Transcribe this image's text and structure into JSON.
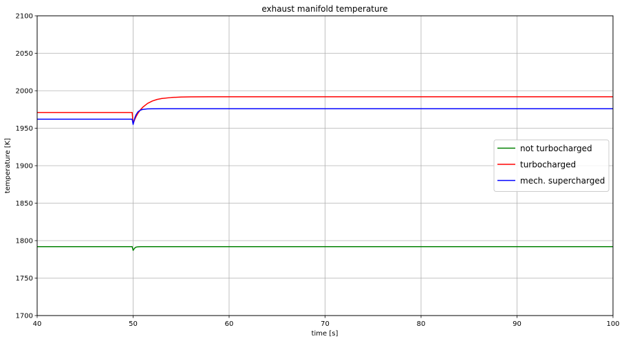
{
  "chart_data": {
    "type": "line",
    "title": "exhaust manifold temperature",
    "xlabel": "time [s]",
    "ylabel": "temperature [K]",
    "xlim": [
      40,
      100
    ],
    "ylim": [
      1700,
      2100
    ],
    "xticks": [
      40,
      50,
      60,
      70,
      80,
      90,
      100
    ],
    "yticks": [
      1700,
      1750,
      1800,
      1850,
      1900,
      1950,
      2000,
      2050,
      2100
    ],
    "grid": true,
    "legend_placement": "center-right",
    "series": [
      {
        "name": "not turbocharged",
        "color": "#008000",
        "x": [
          40,
          49.9,
          50.0,
          50.1,
          50.2,
          50.3,
          50.5,
          50.8,
          51.0,
          52.0,
          60.0,
          100.0
        ],
        "y": [
          1792,
          1792,
          1787,
          1789,
          1790.5,
          1791.3,
          1791.8,
          1792,
          1792,
          1792,
          1792,
          1792
        ]
      },
      {
        "name": "turbocharged",
        "color": "#ff0000",
        "x": [
          40,
          49.9,
          50.0,
          50.1,
          50.2,
          50.3,
          50.5,
          50.75,
          51.0,
          51.5,
          52.0,
          52.5,
          53.0,
          54.0,
          55.0,
          56.0,
          58.0,
          60.0,
          100.0
        ],
        "y": [
          1971,
          1971,
          1956,
          1959.4,
          1962.6,
          1965.3,
          1969.9,
          1974.4,
          1978.0,
          1983.1,
          1986.3,
          1988.4,
          1989.7,
          1991.0,
          1991.6,
          1991.85,
          1992,
          1992,
          1992
        ]
      },
      {
        "name": "mech. supercharged",
        "color": "#0000ff",
        "x": [
          40,
          49.9,
          50.0,
          50.1,
          50.2,
          50.3,
          50.5,
          50.75,
          51.0,
          51.5,
          52.0,
          53.0,
          54.0,
          56.0,
          60.0,
          100.0
        ],
        "y": [
          1962,
          1962,
          1955,
          1960.4,
          1964.6,
          1967.8,
          1971.8,
          1974.1,
          1975.1,
          1975.8,
          1975.97,
          1976,
          1976,
          1976,
          1976,
          1976
        ]
      }
    ]
  }
}
